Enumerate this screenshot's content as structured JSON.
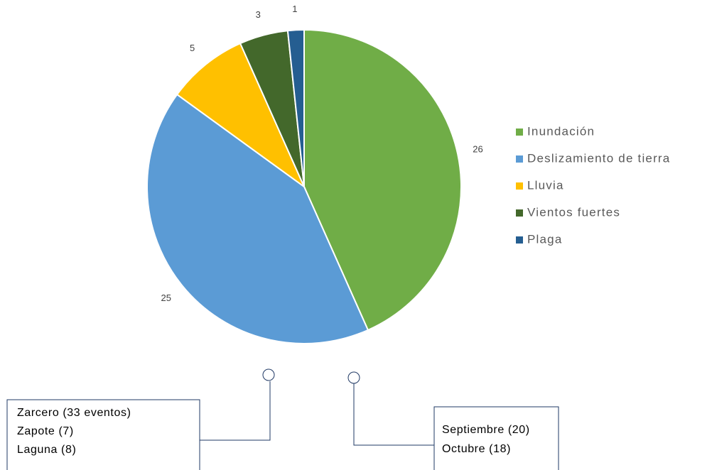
{
  "chart_data": {
    "type": "pie",
    "categories": [
      "Inundación",
      "Deslizamiento de tierra",
      "Lluvia",
      "Vientos fuertes",
      "Plaga"
    ],
    "values": [
      26,
      25,
      5,
      3,
      1
    ],
    "colors": [
      "#70ad47",
      "#5b9bd5",
      "#ffc000",
      "#43682b",
      "#255e91"
    ],
    "legend": "right",
    "annotations": [
      {
        "lines": [
          "Zarcero (33 eventos)",
          "Zapote (7)",
          "Laguna (8)"
        ]
      },
      {
        "lines": [
          "Septiembre (20)",
          "Octubre (18)"
        ]
      }
    ]
  }
}
